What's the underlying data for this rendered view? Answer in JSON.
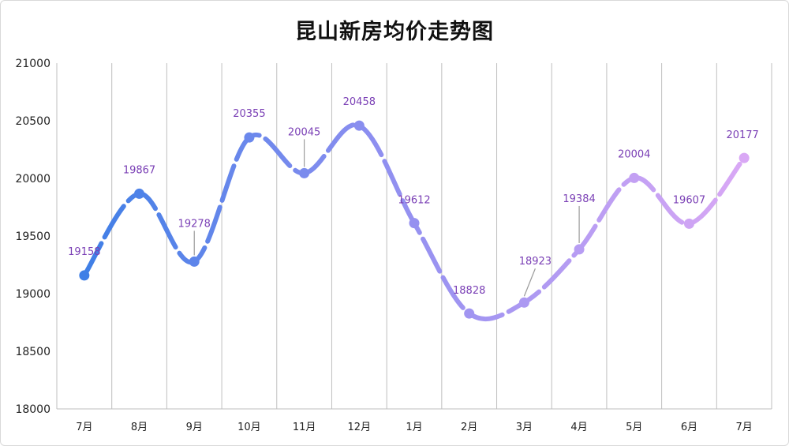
{
  "chart_data": {
    "type": "line",
    "title": "昆山新房均价走势图",
    "xlabel": "",
    "ylabel": "",
    "categories": [
      "7月",
      "8月",
      "9月",
      "10月",
      "11月",
      "12月",
      "1月",
      "2月",
      "3月",
      "4月",
      "5月",
      "6月",
      "7月"
    ],
    "series": [
      {
        "values": [
          19158,
          19867,
          19278,
          20355,
          20045,
          20458,
          19612,
          18828,
          18923,
          19384,
          20004,
          19607,
          20177
        ]
      }
    ],
    "ylim": [
      18000,
      21000
    ],
    "yticks": [
      18000,
      18500,
      19000,
      19500,
      20000,
      20500,
      21000
    ],
    "grid": {
      "vertical": true,
      "horizontal": false
    },
    "legend": "none",
    "colors": {
      "start": "#3f7fe6",
      "end": "#d9a8f5",
      "label": "#7a3fb5",
      "grid": "#bfbfbf"
    }
  }
}
